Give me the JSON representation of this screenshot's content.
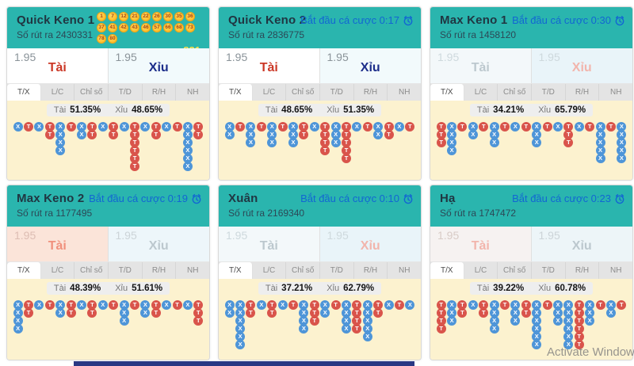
{
  "labels": {
    "draw_prefix": "Số rút ra",
    "countdown_prefix": "Bắt đầu cá cược",
    "tai": "Tài",
    "xiu": "Xỉu",
    "odds_value": "1.95"
  },
  "tabs": [
    "T/X",
    "L/C",
    "Chỉ số",
    "T/D",
    "R/H",
    "NH"
  ],
  "watermark": "Activate Windows",
  "colors": {
    "header_teal": "#2ab5ae",
    "countdown_blue": "#1266d3",
    "road_tai_red": "#d9544b",
    "road_xiu_blue": "#4e95d8",
    "chart_cream": "#fcf2cf",
    "ball_gold": "#fdbf2d",
    "bottom_bar_navy": "#293884"
  },
  "cards": [
    {
      "title": "Quick Keno 1",
      "draw_no": "2430331",
      "countdown": null,
      "balls": [
        "1",
        "7",
        "12",
        "21",
        "22",
        "26",
        "30",
        "35",
        "36",
        "37",
        "41",
        "42",
        "43",
        "46",
        "57",
        "66",
        "68",
        "73",
        "78",
        "80"
      ],
      "balls_sum": "821",
      "tai_pct": "51.35%",
      "xiu_pct": "48.65%",
      "odds_style": {
        "tai": {
          "bg": "#ffffff",
          "num": "#8a9399",
          "label": "#cb3726"
        },
        "xiu": {
          "bg": "#f2fafc",
          "num": "#8a9399",
          "label": "#1c2d8a"
        }
      },
      "road": [
        "X",
        "T",
        "X",
        "TT",
        "XXXX",
        "T",
        "XX",
        "TT",
        "X",
        "TT",
        "X",
        "TTTTTT",
        "X",
        "TT",
        "X",
        "T",
        "XXXXXX",
        "TT"
      ]
    },
    {
      "title": "Quick Keno 2",
      "draw_no": "2836775",
      "countdown": "0:17",
      "balls": null,
      "balls_sum": null,
      "tai_pct": "48.65%",
      "xiu_pct": "51.35%",
      "odds_style": {
        "tai": {
          "bg": "#ffffff",
          "num": "#8a9399",
          "label": "#cb3726"
        },
        "xiu": {
          "bg": "#f2fafc",
          "num": "#8a9399",
          "label": "#1c2d8a"
        }
      },
      "road": [
        "XX",
        "T",
        "XXX",
        "T",
        "XXX",
        "T",
        "XXX",
        "TT",
        "X",
        "TTTT",
        "XXX",
        "TTTTT",
        "X",
        "T",
        "XX",
        "TT",
        "X",
        "T"
      ]
    },
    {
      "title": "Max Keno 1",
      "draw_no": "1458120",
      "countdown": "0:30",
      "balls": null,
      "balls_sum": null,
      "tai_pct": "34.21%",
      "xiu_pct": "65.79%",
      "odds_style": {
        "tai": {
          "bg": "#f3f8fa",
          "num": "#ced9dd",
          "label": "#bcc8ce"
        },
        "xiu": {
          "bg": "#e9f4f9",
          "num": "#ced9dd",
          "label": "#f2b5ac"
        }
      },
      "road": [
        "TTT",
        "XXXX",
        "T",
        "XX",
        "T",
        "XXX",
        "T",
        "X",
        "T",
        "XXX",
        "T",
        "X",
        "TTT",
        "X",
        "T",
        "XXXXX",
        "T",
        "XXXXX"
      ]
    },
    {
      "title": "Max Keno 2",
      "draw_no": "1177495",
      "countdown": "0:19",
      "balls": null,
      "balls_sum": null,
      "tai_pct": "48.39%",
      "xiu_pct": "51.61%",
      "odds_style": {
        "tai": {
          "bg": "#fbe4d9",
          "num": "#ddbdb3",
          "label": "#f0907c"
        },
        "xiu": {
          "bg": "#edf6fa",
          "num": "#ccd4d8",
          "label": "#bcc8ce"
        }
      },
      "road": [
        "XXXX",
        "TT",
        "X",
        "T",
        "XX",
        "TT",
        "X",
        "TT",
        "X",
        "T",
        "XXX",
        "T",
        "XX",
        "TT",
        "X",
        "T",
        "X",
        "TTT"
      ]
    },
    {
      "title": "Xuân",
      "draw_no": "2169340",
      "countdown": "0:10",
      "balls": null,
      "balls_sum": null,
      "tai_pct": "37.21%",
      "xiu_pct": "62.79%",
      "odds_style": {
        "tai": {
          "bg": "#f3f8fa",
          "num": "#ced9dd",
          "label": "#bcc8ce"
        },
        "xiu": {
          "bg": "#e9f4f9",
          "num": "#ced9dd",
          "label": "#f2b5ac"
        }
      },
      "road": [
        "XX",
        "XXXXXX",
        "TT",
        "X",
        "TT",
        "X",
        "T",
        "XXXX",
        "TTT",
        "XX",
        "T",
        "XXXX",
        "TTTT",
        "XXXXX",
        "TT",
        "X",
        "T",
        "X"
      ]
    },
    {
      "title": "Hạ",
      "draw_no": "1747472",
      "countdown": "0:23",
      "balls": null,
      "balls_sum": null,
      "tai_pct": "39.22%",
      "xiu_pct": "60.78%",
      "odds_style": {
        "tai": {
          "bg": "#f6f2f1",
          "num": "#d8cbc6",
          "label": "#f2b5ac"
        },
        "xiu": {
          "bg": "#edf5f8",
          "num": "#ccd4d8",
          "label": "#bcc8ce"
        }
      },
      "road": [
        "TTTT",
        "XXX",
        "TT",
        "X",
        "TT",
        "XXXX",
        "T",
        "XXX",
        "TT",
        "XXXXXX",
        "T",
        "XXX",
        "XXXXXX",
        "TTTTTT",
        "XXX",
        "T",
        "XX",
        "T"
      ]
    }
  ]
}
